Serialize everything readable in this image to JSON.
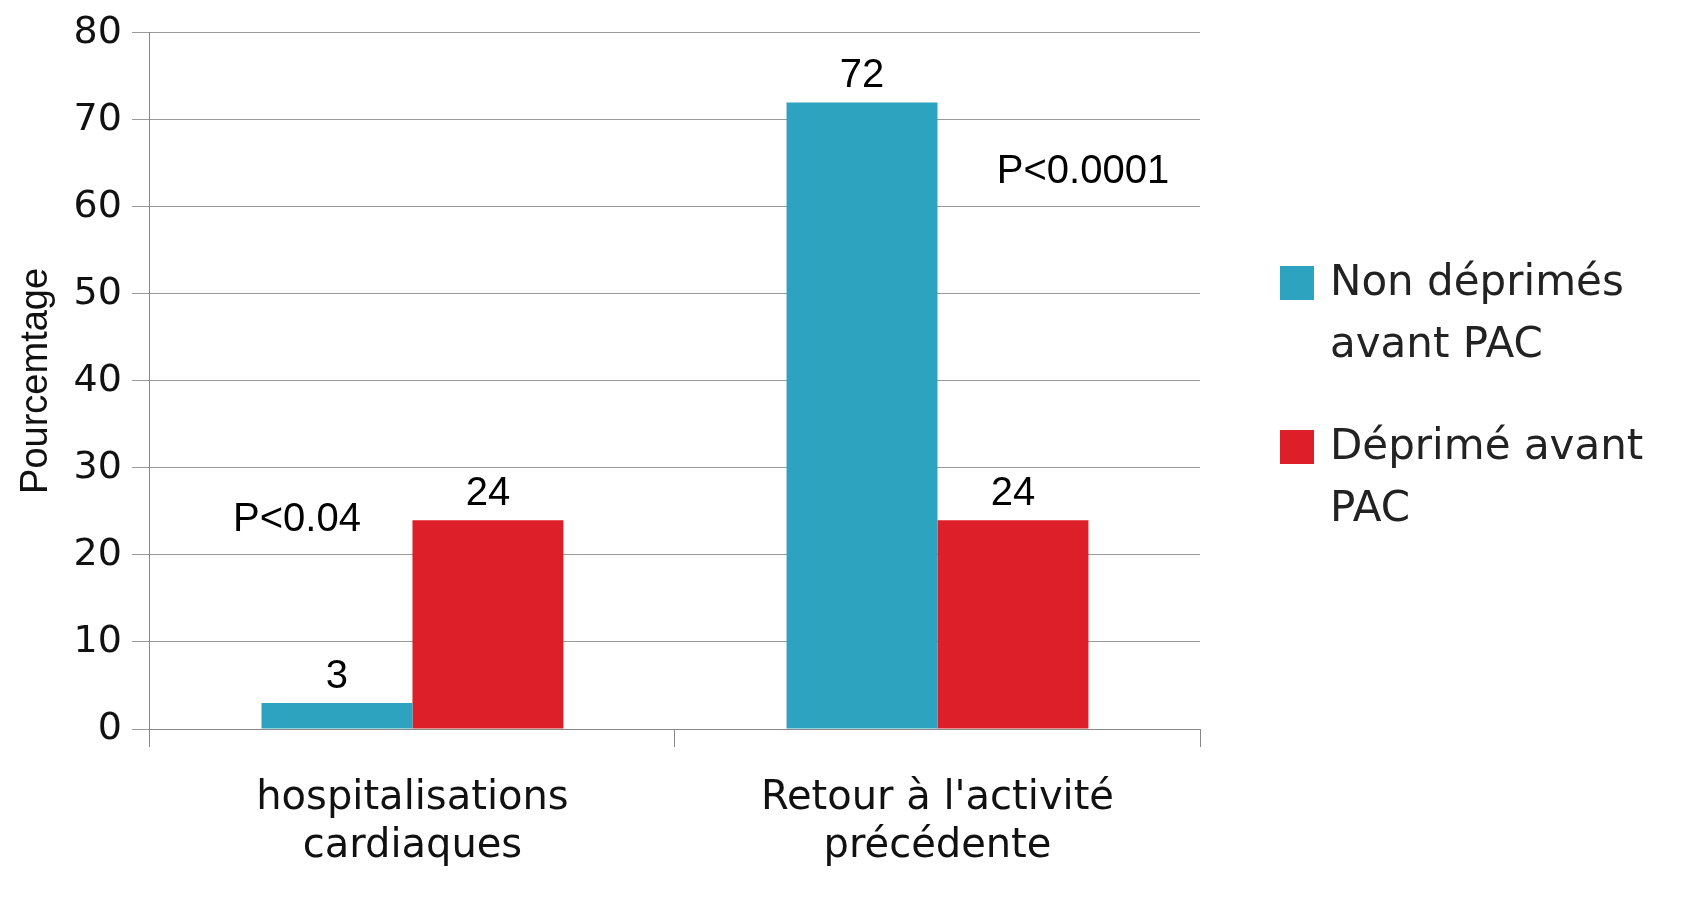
{
  "chart_data": {
    "type": "bar",
    "ylabel": "Pourcemtage",
    "categories": [
      "hospitalisations cardiaques",
      "Retour à l'activité précédente"
    ],
    "series": [
      {
        "name": "Non déprimés avant PAC",
        "color": "#2ea3bf",
        "values": [
          3,
          72
        ]
      },
      {
        "name": "Déprimé avant PAC",
        "color": "#dc1f28",
        "values": [
          24,
          24
        ]
      }
    ],
    "ylim": [
      0,
      80
    ],
    "yticks": [
      0,
      10,
      20,
      30,
      40,
      50,
      60,
      70,
      80
    ],
    "grid": "y",
    "legend": "right",
    "data_labels": true,
    "annotations": [
      {
        "text": "P<0.04",
        "x": "hospitalisations cardiaques",
        "y": 24
      },
      {
        "text": "P<0.0001",
        "x": "Retour à l'activité précédente",
        "y": 64
      }
    ]
  }
}
